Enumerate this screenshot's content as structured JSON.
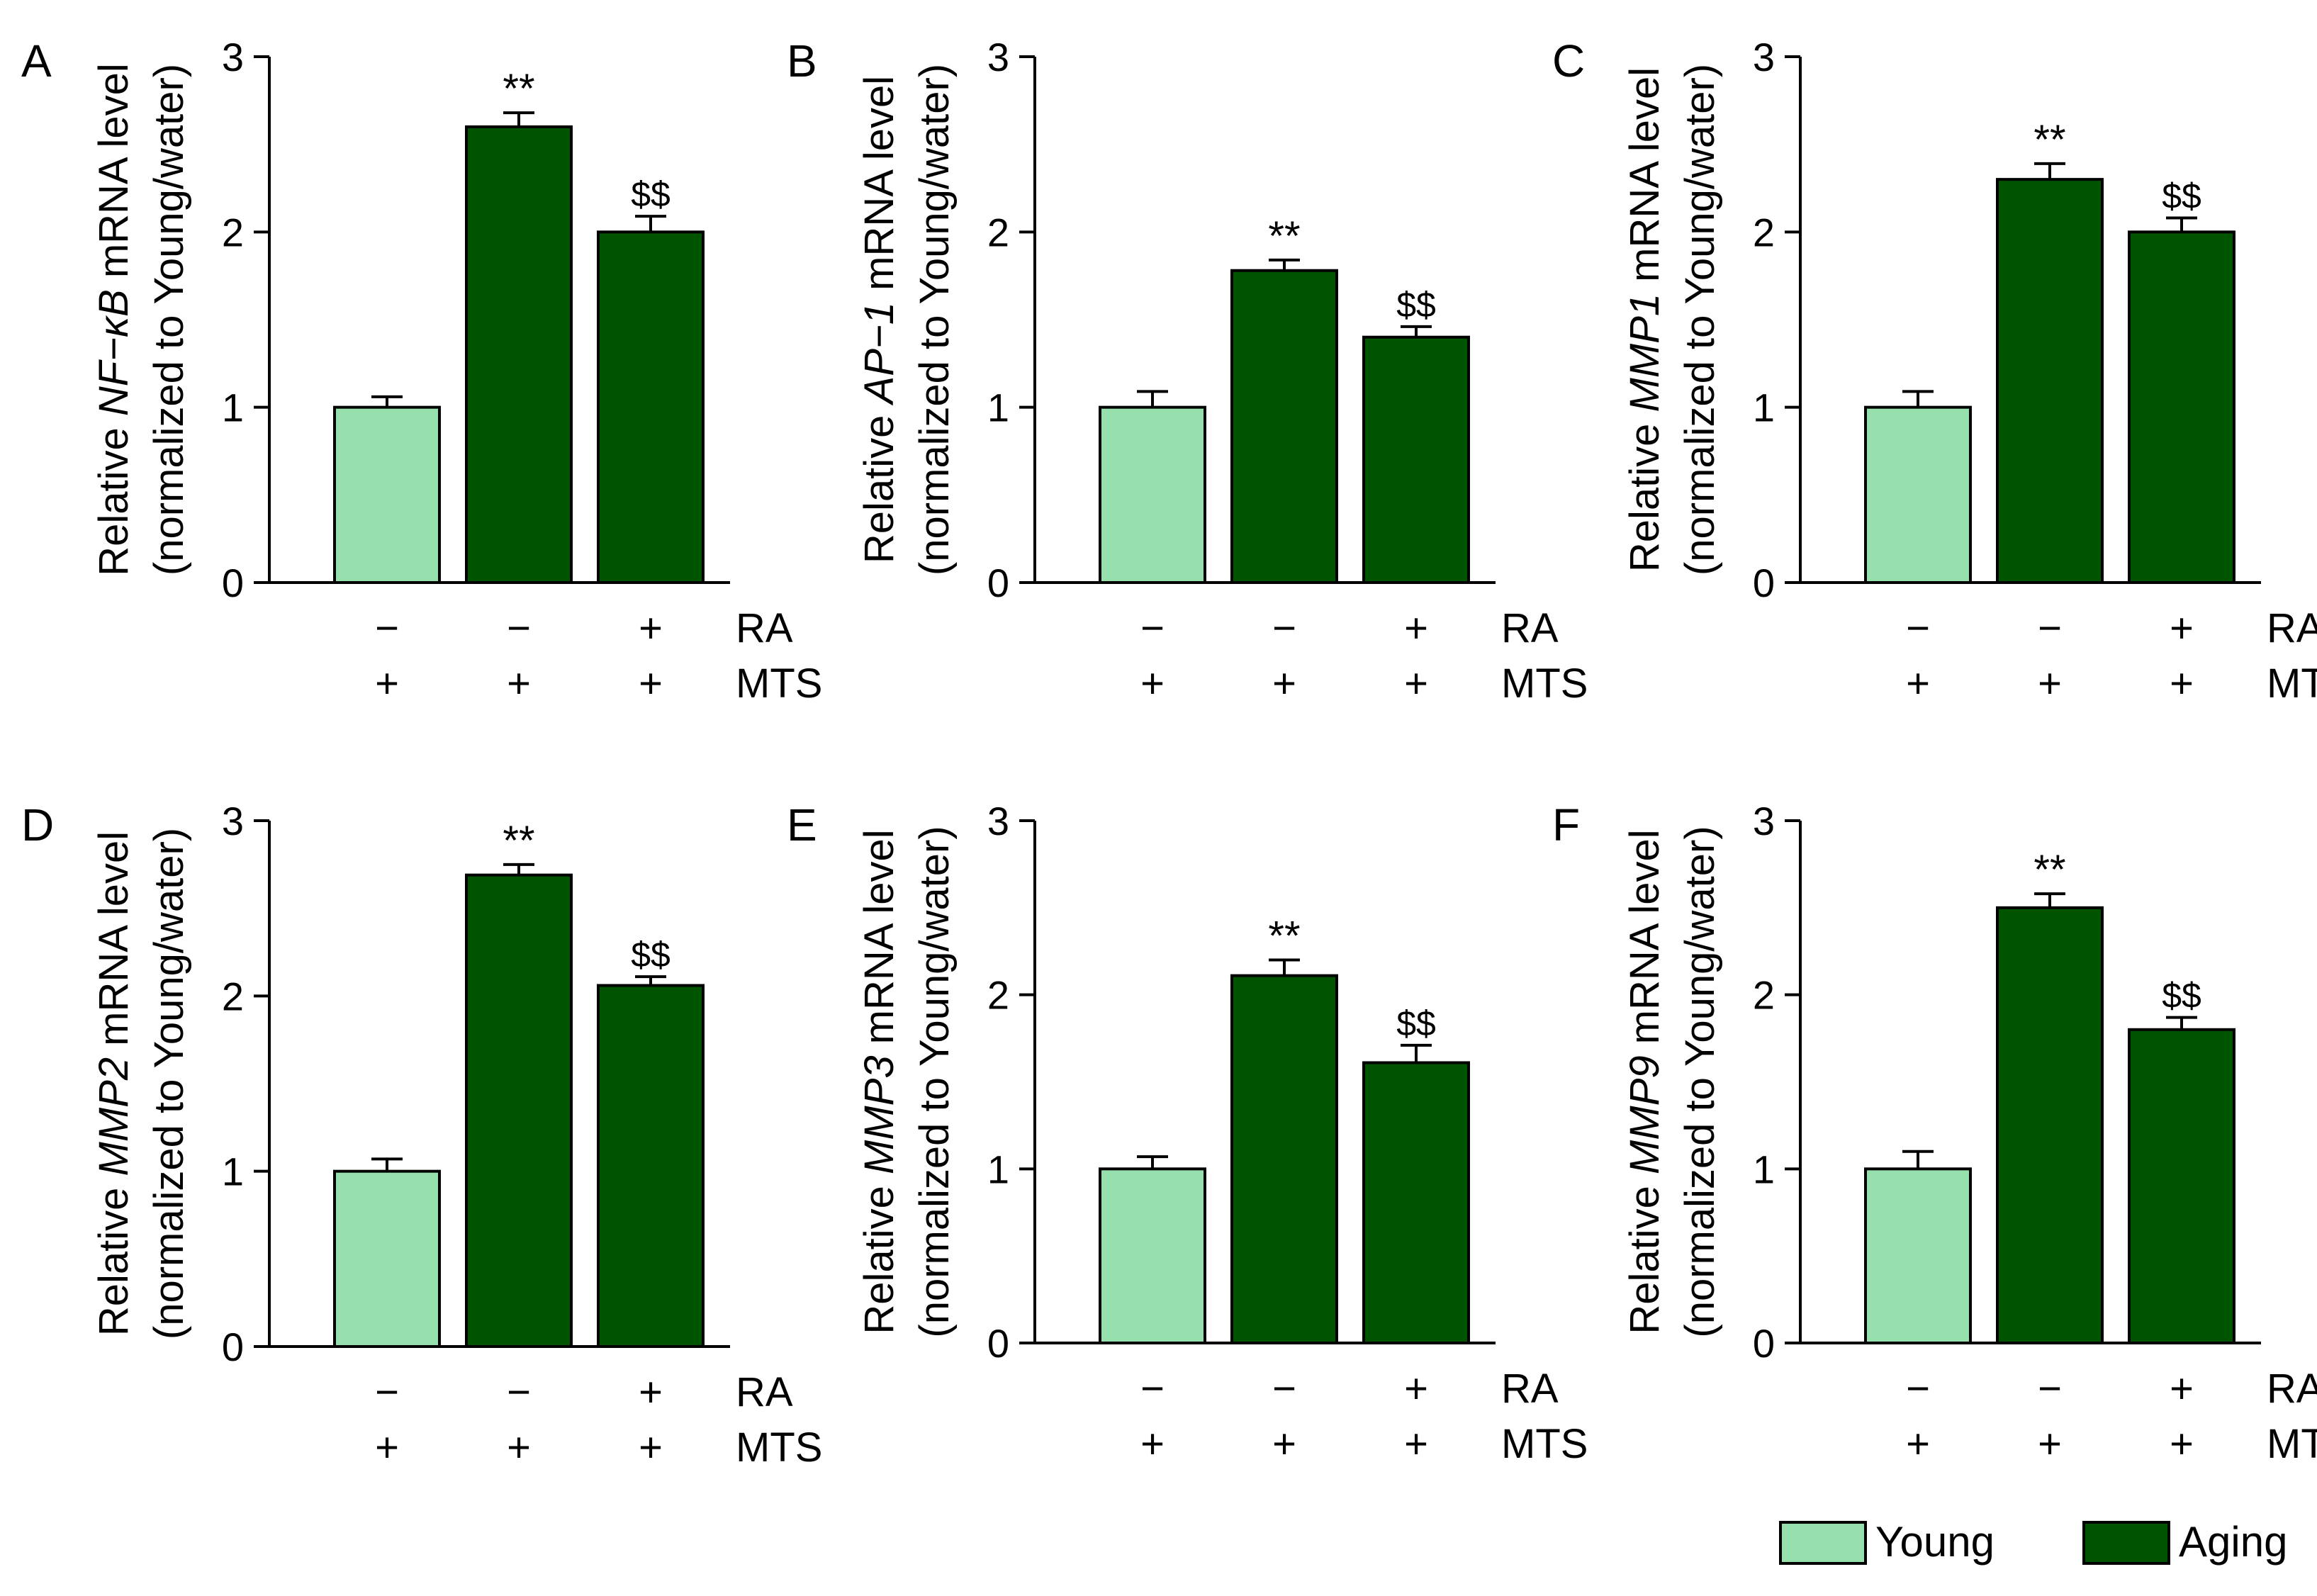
{
  "colors": {
    "young": "#96E0AE",
    "aging": "#005400",
    "axis": "#000000"
  },
  "row_labels": {
    "ra": "RA",
    "mts": "MTS"
  },
  "legend": [
    {
      "label": "Young",
      "color_key": "young"
    },
    {
      "label": "Aging",
      "color_key": "aging"
    }
  ],
  "chart_data": [
    {
      "panel": "A",
      "type": "bar",
      "gene": "NF−κB",
      "ylabel_prefix": "Relative ",
      "ylabel_suffix": " mRNA level",
      "ylabel_line2": "(normalized to Young/water)",
      "ylim": [
        0,
        3
      ],
      "yticks": [
        "0",
        "1",
        "2",
        "3"
      ],
      "categories": [
        {
          "ra": "−",
          "mts": "+",
          "group": "Young"
        },
        {
          "ra": "−",
          "mts": "+",
          "group": "Aging"
        },
        {
          "ra": "+",
          "mts": "+",
          "group": "Aging"
        }
      ],
      "values": [
        1.0,
        2.6,
        2.0
      ],
      "errors": [
        0.06,
        0.08,
        0.09
      ],
      "annotations": [
        "",
        "**",
        "$$"
      ]
    },
    {
      "panel": "B",
      "type": "bar",
      "gene": "AP−1",
      "ylabel_prefix": "Relative ",
      "ylabel_suffix": " mRNA level",
      "ylabel_line2": "(normalized to Young/water)",
      "ylim": [
        0,
        3
      ],
      "yticks": [
        "0",
        "1",
        "2",
        "3"
      ],
      "categories": [
        {
          "ra": "−",
          "mts": "+",
          "group": "Young"
        },
        {
          "ra": "−",
          "mts": "+",
          "group": "Aging"
        },
        {
          "ra": "+",
          "mts": "+",
          "group": "Aging"
        }
      ],
      "values": [
        1.0,
        1.78,
        1.4
      ],
      "errors": [
        0.09,
        0.06,
        0.06
      ],
      "annotations": [
        "",
        "**",
        "$$"
      ]
    },
    {
      "panel": "C",
      "type": "bar",
      "gene": "MMP1",
      "ylabel_prefix": "Relative ",
      "ylabel_suffix": " mRNA level",
      "ylabel_line2": "(normalized to Young/water)",
      "ylim": [
        0,
        3
      ],
      "yticks": [
        "0",
        "1",
        "2",
        "3"
      ],
      "categories": [
        {
          "ra": "−",
          "mts": "+",
          "group": "Young"
        },
        {
          "ra": "−",
          "mts": "+",
          "group": "Aging"
        },
        {
          "ra": "+",
          "mts": "+",
          "group": "Aging"
        }
      ],
      "values": [
        1.0,
        2.3,
        2.0
      ],
      "errors": [
        0.09,
        0.09,
        0.08
      ],
      "annotations": [
        "",
        "**",
        "$$"
      ]
    },
    {
      "panel": "D",
      "type": "bar",
      "gene": "MMP2",
      "ylabel_prefix": "Relative ",
      "ylabel_suffix": " mRNA level",
      "ylabel_line2": "(normalized to Young/water)",
      "ylim": [
        0,
        3
      ],
      "yticks": [
        "0",
        "1",
        "2",
        "3"
      ],
      "categories": [
        {
          "ra": "−",
          "mts": "+",
          "group": "Young"
        },
        {
          "ra": "−",
          "mts": "+",
          "group": "Aging"
        },
        {
          "ra": "+",
          "mts": "+",
          "group": "Aging"
        }
      ],
      "values": [
        1.0,
        2.69,
        2.06
      ],
      "errors": [
        0.07,
        0.06,
        0.05
      ],
      "annotations": [
        "",
        "**",
        "$$"
      ]
    },
    {
      "panel": "E",
      "type": "bar",
      "gene": "MMP3",
      "ylabel_prefix": "Relative ",
      "ylabel_suffix": " mRNA level",
      "ylabel_line2": "(normalized to Young/water)",
      "ylim": [
        0,
        3
      ],
      "yticks": [
        "0",
        "1",
        "2",
        "3"
      ],
      "categories": [
        {
          "ra": "−",
          "mts": "+",
          "group": "Young"
        },
        {
          "ra": "−",
          "mts": "+",
          "group": "Aging"
        },
        {
          "ra": "+",
          "mts": "+",
          "group": "Aging"
        }
      ],
      "values": [
        1.0,
        2.11,
        1.61
      ],
      "errors": [
        0.07,
        0.09,
        0.1
      ],
      "annotations": [
        "",
        "**",
        "$$"
      ]
    },
    {
      "panel": "F",
      "type": "bar",
      "gene": "MMP9",
      "ylabel_prefix": "Relative ",
      "ylabel_suffix": " mRNA level",
      "ylabel_line2": "(normalized to Young/water)",
      "ylim": [
        0,
        3
      ],
      "yticks": [
        "0",
        "1",
        "2",
        "3"
      ],
      "categories": [
        {
          "ra": "−",
          "mts": "+",
          "group": "Young"
        },
        {
          "ra": "−",
          "mts": "+",
          "group": "Aging"
        },
        {
          "ra": "+",
          "mts": "+",
          "group": "Aging"
        }
      ],
      "values": [
        1.0,
        2.5,
        1.8
      ],
      "errors": [
        0.1,
        0.08,
        0.07
      ],
      "annotations": [
        "",
        "**",
        "$$"
      ]
    }
  ]
}
